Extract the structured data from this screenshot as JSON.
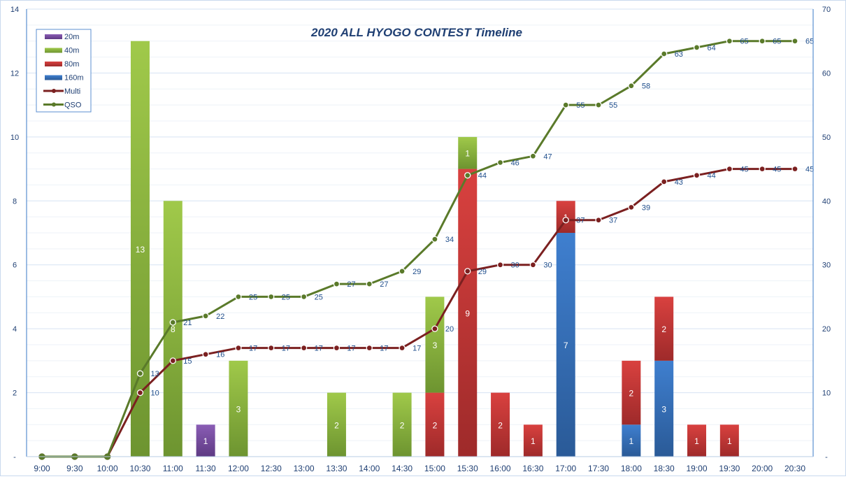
{
  "chart_data": {
    "type": "bar",
    "title": "2020 ALL HYOGO  CONTEST Timeline",
    "categories": [
      "9:00",
      "9:30",
      "10:00",
      "10:30",
      "11:00",
      "11:30",
      "12:00",
      "12:30",
      "13:00",
      "13:30",
      "14:00",
      "14:30",
      "15:00",
      "15:30",
      "16:00",
      "16:30",
      "17:00",
      "17:30",
      "18:00",
      "18:30",
      "19:00",
      "19:30",
      "20:00",
      "20:30"
    ],
    "bar_series": [
      {
        "name": "160m",
        "color": "#3a70b8",
        "values": [
          0,
          0,
          0,
          0,
          0,
          0,
          0,
          0,
          0,
          0,
          0,
          0,
          0,
          0,
          0,
          0,
          7,
          0,
          1,
          3,
          0,
          0,
          0,
          0
        ]
      },
      {
        "name": "80m",
        "color": "#c0393b",
        "values": [
          0,
          0,
          0,
          0,
          0,
          0,
          0,
          0,
          0,
          0,
          0,
          0,
          2,
          9,
          2,
          1,
          1,
          0,
          2,
          2,
          1,
          1,
          0,
          0
        ]
      },
      {
        "name": "40m",
        "color": "#8ab63f",
        "values": [
          0,
          0,
          0,
          13,
          8,
          0,
          3,
          0,
          0,
          2,
          0,
          2,
          3,
          1,
          0,
          0,
          0,
          0,
          0,
          0,
          0,
          0,
          0,
          0
        ]
      },
      {
        "name": "20m",
        "color": "#7a4fa0",
        "values": [
          0,
          0,
          0,
          0,
          0,
          1,
          0,
          0,
          0,
          0,
          0,
          0,
          0,
          0,
          0,
          0,
          0,
          0,
          0,
          0,
          0,
          0,
          0,
          0
        ]
      }
    ],
    "line_series": [
      {
        "name": "Multi",
        "color": "#7b2020",
        "axis": "right",
        "values": [
          0,
          0,
          0,
          10,
          15,
          16,
          17,
          17,
          17,
          17,
          17,
          17,
          20,
          29,
          30,
          30,
          37,
          37,
          39,
          43,
          44,
          45,
          45,
          45
        ]
      },
      {
        "name": "QSO",
        "color": "#5a7a2a",
        "axis": "right",
        "values": [
          0,
          0,
          0,
          13,
          21,
          22,
          25,
          25,
          25,
          27,
          27,
          29,
          34,
          44,
          46,
          47,
          55,
          55,
          58,
          63,
          64,
          65,
          65,
          65
        ]
      }
    ],
    "legend_order": [
      "20m",
      "40m",
      "80m",
      "160m",
      "Multi",
      "QSO"
    ],
    "legend_position": "top-left",
    "y_left": {
      "range": [
        0,
        14
      ],
      "ticks": [
        "-",
        "2",
        "4",
        "6",
        "8",
        "10",
        "12",
        "14"
      ]
    },
    "y_right": {
      "range": [
        0,
        70
      ],
      "ticks": [
        "-",
        "10",
        "20",
        "30",
        "40",
        "50",
        "60",
        "70"
      ]
    },
    "grid": true
  }
}
